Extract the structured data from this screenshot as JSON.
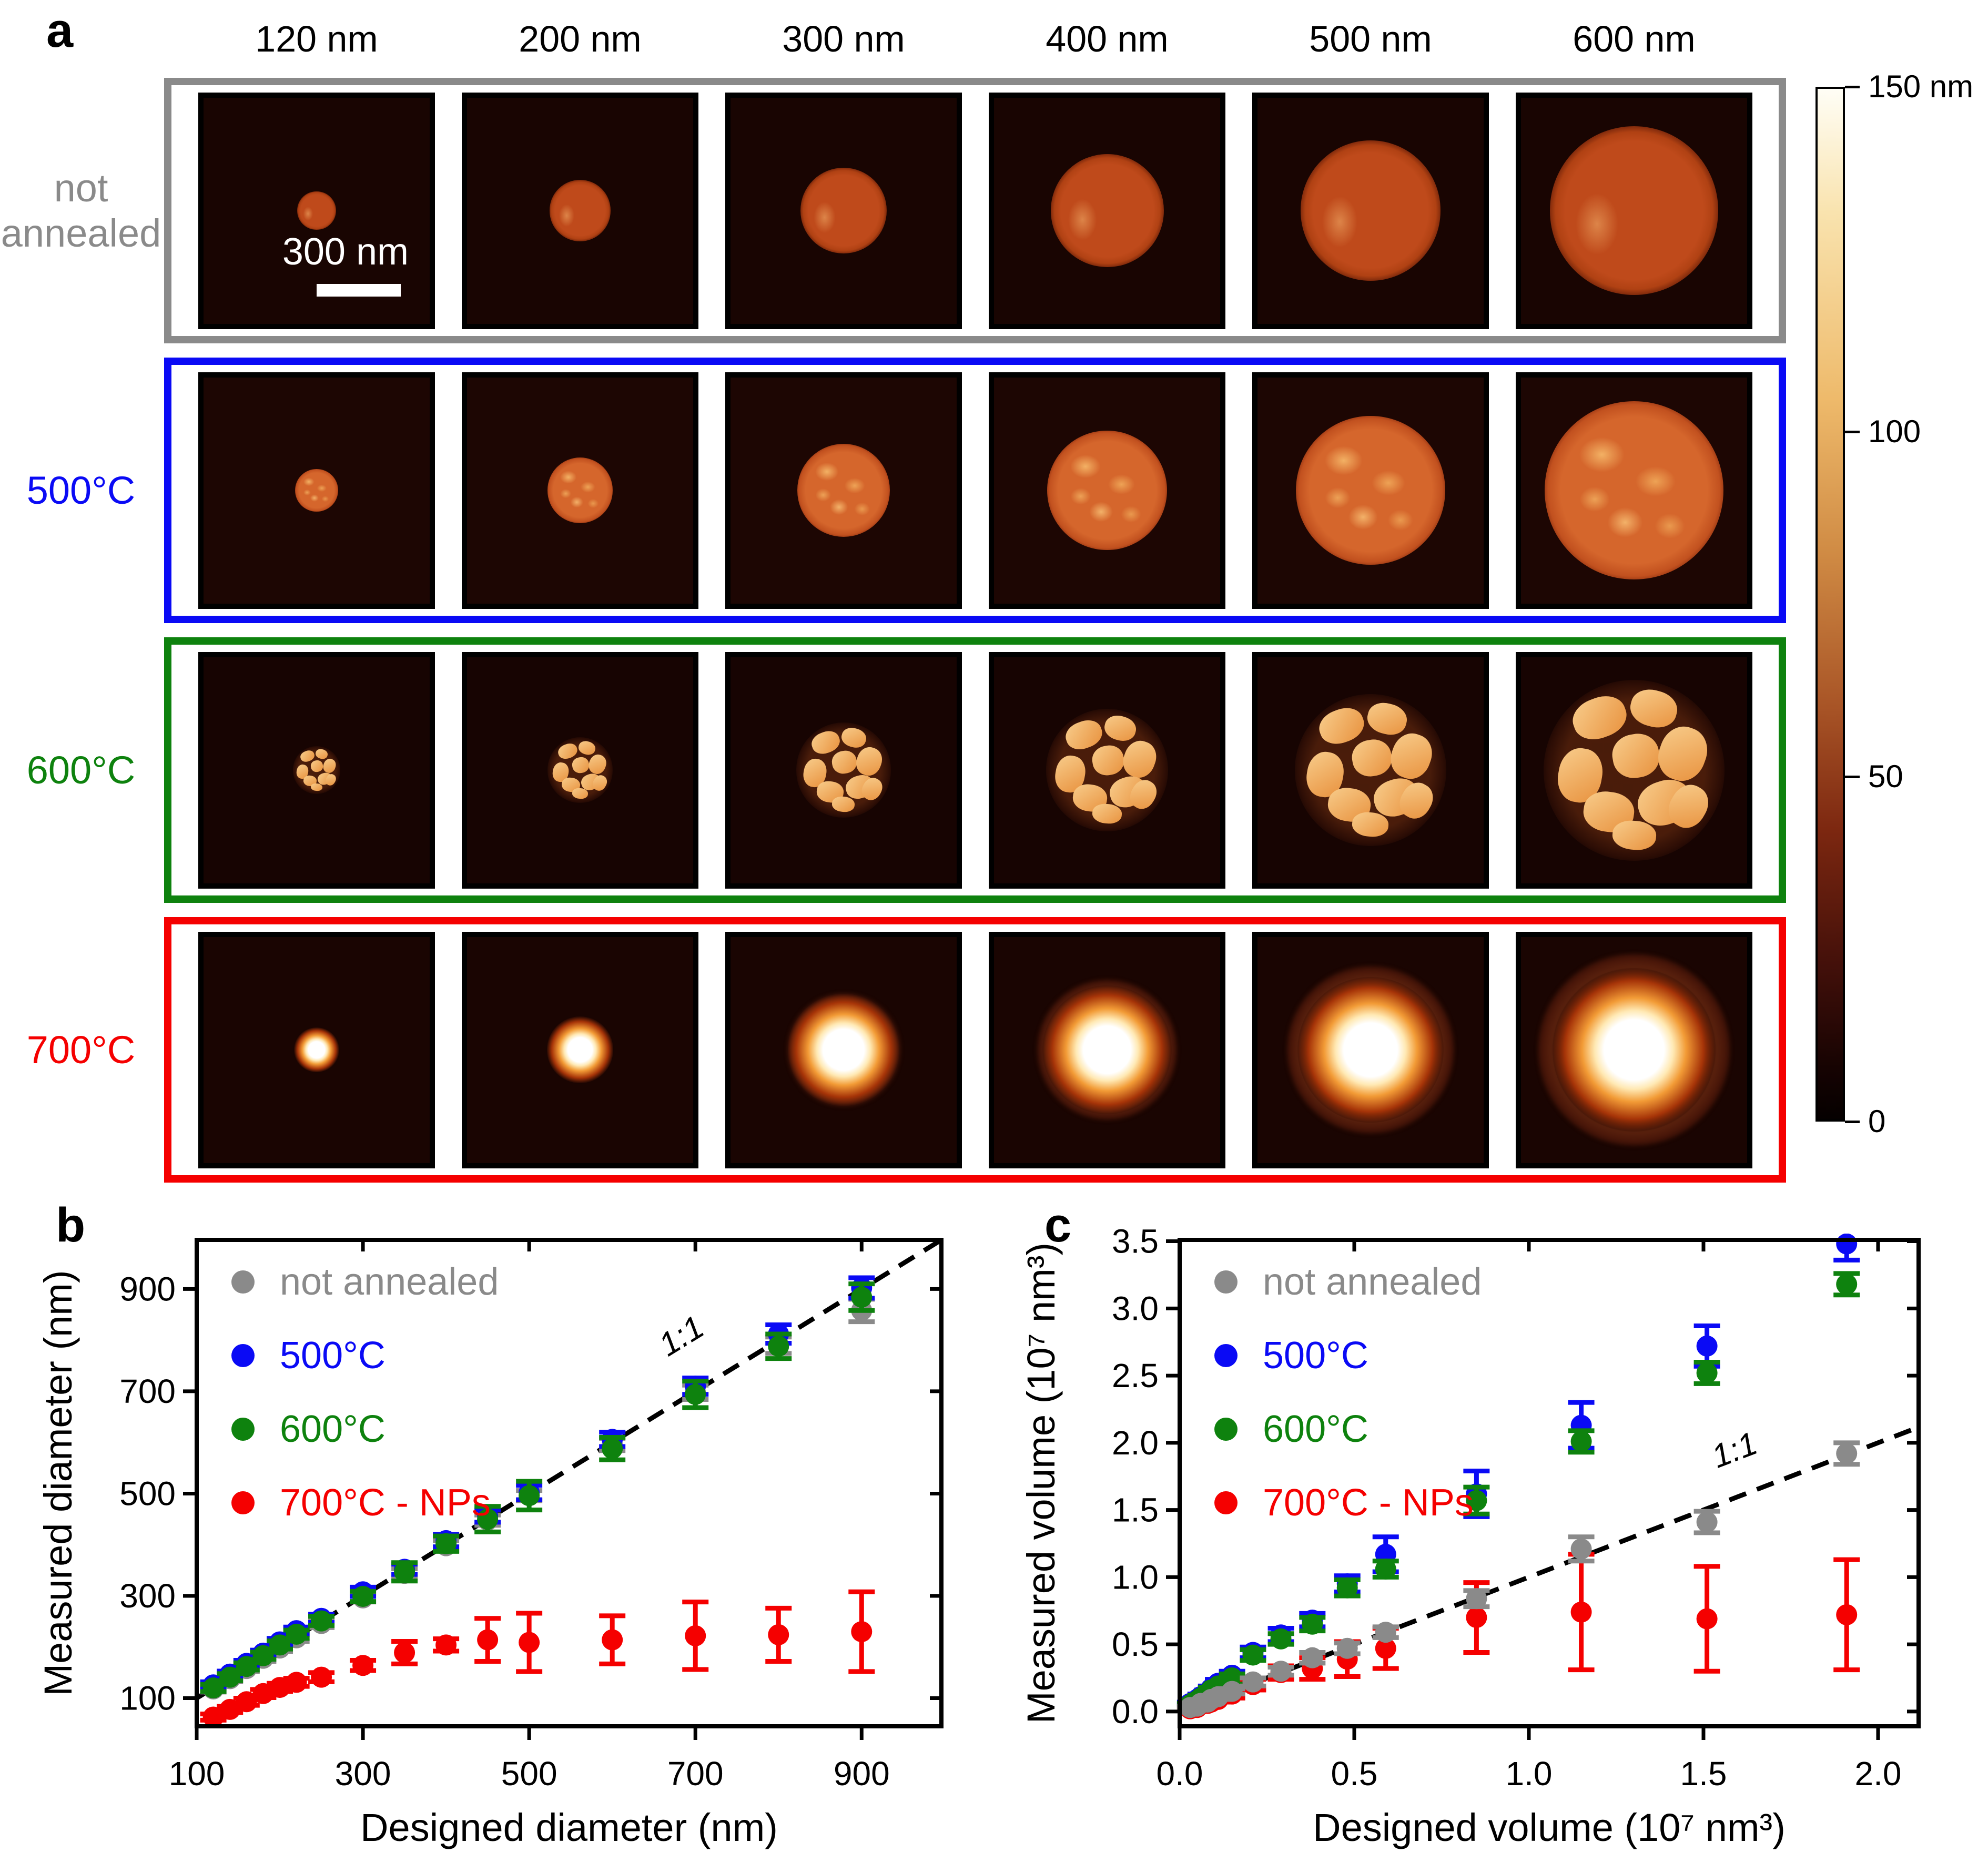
{
  "panels": {
    "a": {
      "letter": "a"
    },
    "b": {
      "letter": "b"
    },
    "c": {
      "letter": "c"
    }
  },
  "panel_a": {
    "column_headers": [
      "120 nm",
      "200 nm",
      "300 nm",
      "400 nm",
      "500 nm",
      "600 nm"
    ],
    "rows": [
      {
        "key": "not-annealed",
        "label": "not annealed",
        "color": "#8a8a8a"
      },
      {
        "key": "500c",
        "label": "500°C",
        "color": "#0a0af5"
      },
      {
        "key": "600c",
        "label": "600°C",
        "color": "#0e820e"
      },
      {
        "key": "700c",
        "label": "700°C",
        "color": "#f50000"
      }
    ],
    "scale_bar": {
      "label": "300 nm"
    },
    "colorbar": {
      "ticks": [
        {
          "label": "150 nm",
          "value": 150
        },
        {
          "label": "100",
          "value": 100
        },
        {
          "label": "50",
          "value": 50
        },
        {
          "label": "0",
          "value": 0
        }
      ]
    }
  },
  "chart_data": [
    {
      "id": "b",
      "type": "scatter",
      "title": "",
      "xlabel": "Designed diameter (nm)",
      "ylabel": "Measured diameter (nm)",
      "xlim": [
        100,
        996
      ],
      "ylim": [
        45,
        996
      ],
      "x_ticks": [
        {
          "v": 100,
          "label": "100"
        },
        {
          "v": 300,
          "label": "300"
        },
        {
          "v": 500,
          "label": "500"
        },
        {
          "v": 700,
          "label": "700"
        },
        {
          "v": 900,
          "label": "900"
        }
      ],
      "y_ticks": [
        {
          "v": 100,
          "label": "100"
        },
        {
          "v": 300,
          "label": "300"
        },
        {
          "v": 500,
          "label": "500"
        },
        {
          "v": 700,
          "label": "700"
        },
        {
          "v": 900,
          "label": "900"
        }
      ],
      "one_to_one": {
        "label": "1:1",
        "label_x": 690,
        "label_y": 790
      },
      "grid": false,
      "legend_position": "top-left",
      "series": [
        {
          "name": "not annealed",
          "color": "#8a8a8a",
          "x": [
            120,
            140,
            160,
            180,
            200,
            220,
            250,
            300,
            350,
            400,
            450,
            500,
            600,
            700,
            800,
            900
          ],
          "y": [
            118,
            138,
            158,
            178,
            198,
            218,
            246,
            296,
            344,
            398,
            448,
            496,
            596,
            698,
            790,
            858
          ],
          "yerr": [
            6,
            6,
            6,
            6,
            7,
            7,
            8,
            8,
            9,
            10,
            10,
            10,
            12,
            14,
            16,
            22
          ]
        },
        {
          "name": "500°C",
          "color": "#0a0af5",
          "x": [
            120,
            140,
            160,
            180,
            200,
            220,
            250,
            300,
            350,
            400,
            450,
            500,
            600,
            700,
            800,
            900
          ],
          "y": [
            126,
            147,
            168,
            188,
            210,
            232,
            256,
            308,
            352,
            408,
            456,
            502,
            606,
            710,
            812,
            902
          ],
          "yerr": [
            6,
            6,
            6,
            6,
            7,
            7,
            8,
            9,
            10,
            12,
            12,
            14,
            14,
            16,
            18,
            20
          ]
        },
        {
          "name": "600°C",
          "color": "#0e820e",
          "x": [
            120,
            140,
            160,
            180,
            200,
            220,
            250,
            300,
            350,
            400,
            450,
            500,
            600,
            700,
            800,
            900
          ],
          "y": [
            120,
            141,
            162,
            183,
            204,
            225,
            251,
            299,
            347,
            402,
            450,
            496,
            588,
            694,
            788,
            884
          ],
          "yerr": [
            7,
            7,
            7,
            7,
            8,
            8,
            9,
            10,
            18,
            15,
            25,
            28,
            22,
            26,
            24,
            26
          ]
        },
        {
          "name": "700°C - NPs",
          "color": "#f50000",
          "x": [
            120,
            140,
            160,
            180,
            200,
            220,
            250,
            300,
            350,
            400,
            450,
            500,
            600,
            700,
            800,
            900
          ],
          "y": [
            63,
            78,
            93,
            109,
            121,
            131,
            141,
            164,
            189,
            204,
            214,
            209,
            214,
            222,
            224,
            230
          ],
          "yerr": [
            6,
            6,
            7,
            8,
            8,
            8,
            9,
            10,
            22,
            12,
            42,
            57,
            47,
            66,
            52,
            78
          ]
        }
      ]
    },
    {
      "id": "c",
      "type": "scatter",
      "title": "",
      "xlabel": "Designed volume (10⁷ nm³)",
      "ylabel": "Measured volume (10⁷ nm³)",
      "xlim": [
        0.0,
        2.116
      ],
      "ylim": [
        -0.11,
        3.51
      ],
      "x_ticks": [
        {
          "v": 0.0,
          "label": "0.0"
        },
        {
          "v": 0.5,
          "label": "0.5"
        },
        {
          "v": 1.0,
          "label": "1.0"
        },
        {
          "v": 1.5,
          "label": "1.5"
        },
        {
          "v": 2.0,
          "label": "2.0"
        }
      ],
      "y_ticks": [
        {
          "v": 0.0,
          "label": "0.0"
        },
        {
          "v": 0.5,
          "label": "0.5"
        },
        {
          "v": 1.0,
          "label": "1.0"
        },
        {
          "v": 1.5,
          "label": "1.5"
        },
        {
          "v": 2.0,
          "label": "2.0"
        },
        {
          "v": 2.5,
          "label": "2.5"
        },
        {
          "v": 3.0,
          "label": "3.0"
        },
        {
          "v": 3.5,
          "label": "3.5"
        }
      ],
      "one_to_one": {
        "label": "1:1",
        "label_x": 1.6,
        "label_y": 1.87
      },
      "grid": false,
      "legend_position": "top-left",
      "series": [
        {
          "name": "not annealed",
          "color": "#8a8a8a",
          "x": [
            0.03,
            0.05,
            0.06,
            0.08,
            0.09,
            0.11,
            0.15,
            0.21,
            0.29,
            0.38,
            0.48,
            0.59,
            0.85,
            1.15,
            1.51,
            1.91
          ],
          "y": [
            0.03,
            0.04,
            0.06,
            0.07,
            0.09,
            0.11,
            0.15,
            0.22,
            0.3,
            0.4,
            0.47,
            0.59,
            0.84,
            1.21,
            1.41,
            1.92
          ],
          "yerr": [
            0.01,
            0.01,
            0.01,
            0.01,
            0.02,
            0.02,
            0.02,
            0.03,
            0.03,
            0.04,
            0.04,
            0.04,
            0.06,
            0.09,
            0.08,
            0.08
          ]
        },
        {
          "name": "500°C",
          "color": "#0a0af5",
          "x": [
            0.03,
            0.05,
            0.06,
            0.08,
            0.09,
            0.11,
            0.15,
            0.21,
            0.29,
            0.38,
            0.48,
            0.59,
            0.85,
            1.15,
            1.51,
            1.91
          ],
          "y": [
            0.06,
            0.09,
            0.11,
            0.14,
            0.17,
            0.21,
            0.27,
            0.44,
            0.57,
            0.68,
            0.95,
            1.17,
            1.62,
            2.13,
            2.72,
            3.48
          ],
          "yerr": [
            0.01,
            0.01,
            0.02,
            0.02,
            0.02,
            0.03,
            0.03,
            0.04,
            0.05,
            0.05,
            0.06,
            0.13,
            0.17,
            0.17,
            0.15,
            0.12
          ]
        },
        {
          "name": "600°C",
          "color": "#0e820e",
          "x": [
            0.03,
            0.05,
            0.06,
            0.08,
            0.09,
            0.11,
            0.15,
            0.21,
            0.29,
            0.38,
            0.48,
            0.59,
            0.85,
            1.15,
            1.51,
            1.91
          ],
          "y": [
            0.05,
            0.08,
            0.1,
            0.13,
            0.16,
            0.19,
            0.25,
            0.42,
            0.54,
            0.65,
            0.92,
            1.06,
            1.57,
            2.01,
            2.52,
            3.18
          ],
          "yerr": [
            0.01,
            0.01,
            0.02,
            0.02,
            0.02,
            0.02,
            0.03,
            0.04,
            0.04,
            0.05,
            0.06,
            0.06,
            0.1,
            0.08,
            0.08,
            0.08
          ]
        },
        {
          "name": "700°C - NPs",
          "color": "#f50000",
          "x": [
            0.03,
            0.05,
            0.06,
            0.08,
            0.09,
            0.11,
            0.15,
            0.21,
            0.29,
            0.38,
            0.48,
            0.59,
            0.85,
            1.15,
            1.51,
            1.91
          ],
          "y": [
            0.02,
            0.03,
            0.05,
            0.06,
            0.07,
            0.09,
            0.13,
            0.2,
            0.29,
            0.32,
            0.39,
            0.47,
            0.7,
            0.74,
            0.69,
            0.72
          ],
          "yerr": [
            0.01,
            0.01,
            0.01,
            0.02,
            0.02,
            0.02,
            0.03,
            0.04,
            0.05,
            0.08,
            0.13,
            0.15,
            0.26,
            0.43,
            0.39,
            0.41
          ]
        }
      ]
    }
  ]
}
